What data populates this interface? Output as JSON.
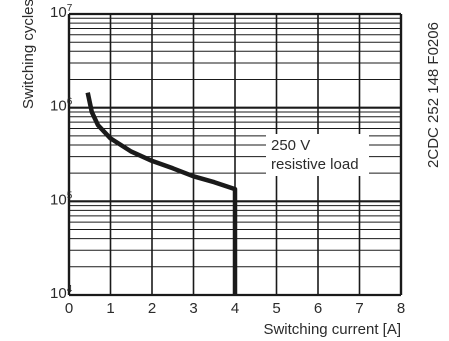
{
  "chart_data": {
    "type": "line",
    "xlabel": "Switching current [A]",
    "ylabel": "Switching cycles",
    "x_ticks": [
      "0",
      "1",
      "2",
      "3",
      "4",
      "5",
      "6",
      "7",
      "8"
    ],
    "xlim": [
      0,
      8
    ],
    "ylim": [
      10000,
      10000000
    ],
    "y_scale": "log",
    "y_ticks": [
      {
        "base": "10",
        "exp": "4",
        "value": 10000
      },
      {
        "base": "10",
        "exp": "5",
        "value": 100000
      },
      {
        "base": "10",
        "exp": "6",
        "value": 1000000
      },
      {
        "base": "10",
        "exp": "7",
        "value": 10000000
      }
    ],
    "grid": true,
    "series": [
      {
        "label_lines": [
          "250 V",
          "resistive load"
        ],
        "x": [
          0.45,
          0.55,
          0.7,
          1.0,
          1.5,
          2.0,
          2.5,
          3.0,
          3.5,
          4.0,
          4.0
        ],
        "y": [
          1450000,
          900000,
          650000,
          470000,
          340000,
          270000,
          225000,
          185000,
          160000,
          135000,
          10000
        ]
      }
    ],
    "side_label": "2CDC 252 148 F0206",
    "colors": {
      "line": "#1a1a1a",
      "grid": "#1a1a1a",
      "text": "#2b2b2b"
    }
  }
}
